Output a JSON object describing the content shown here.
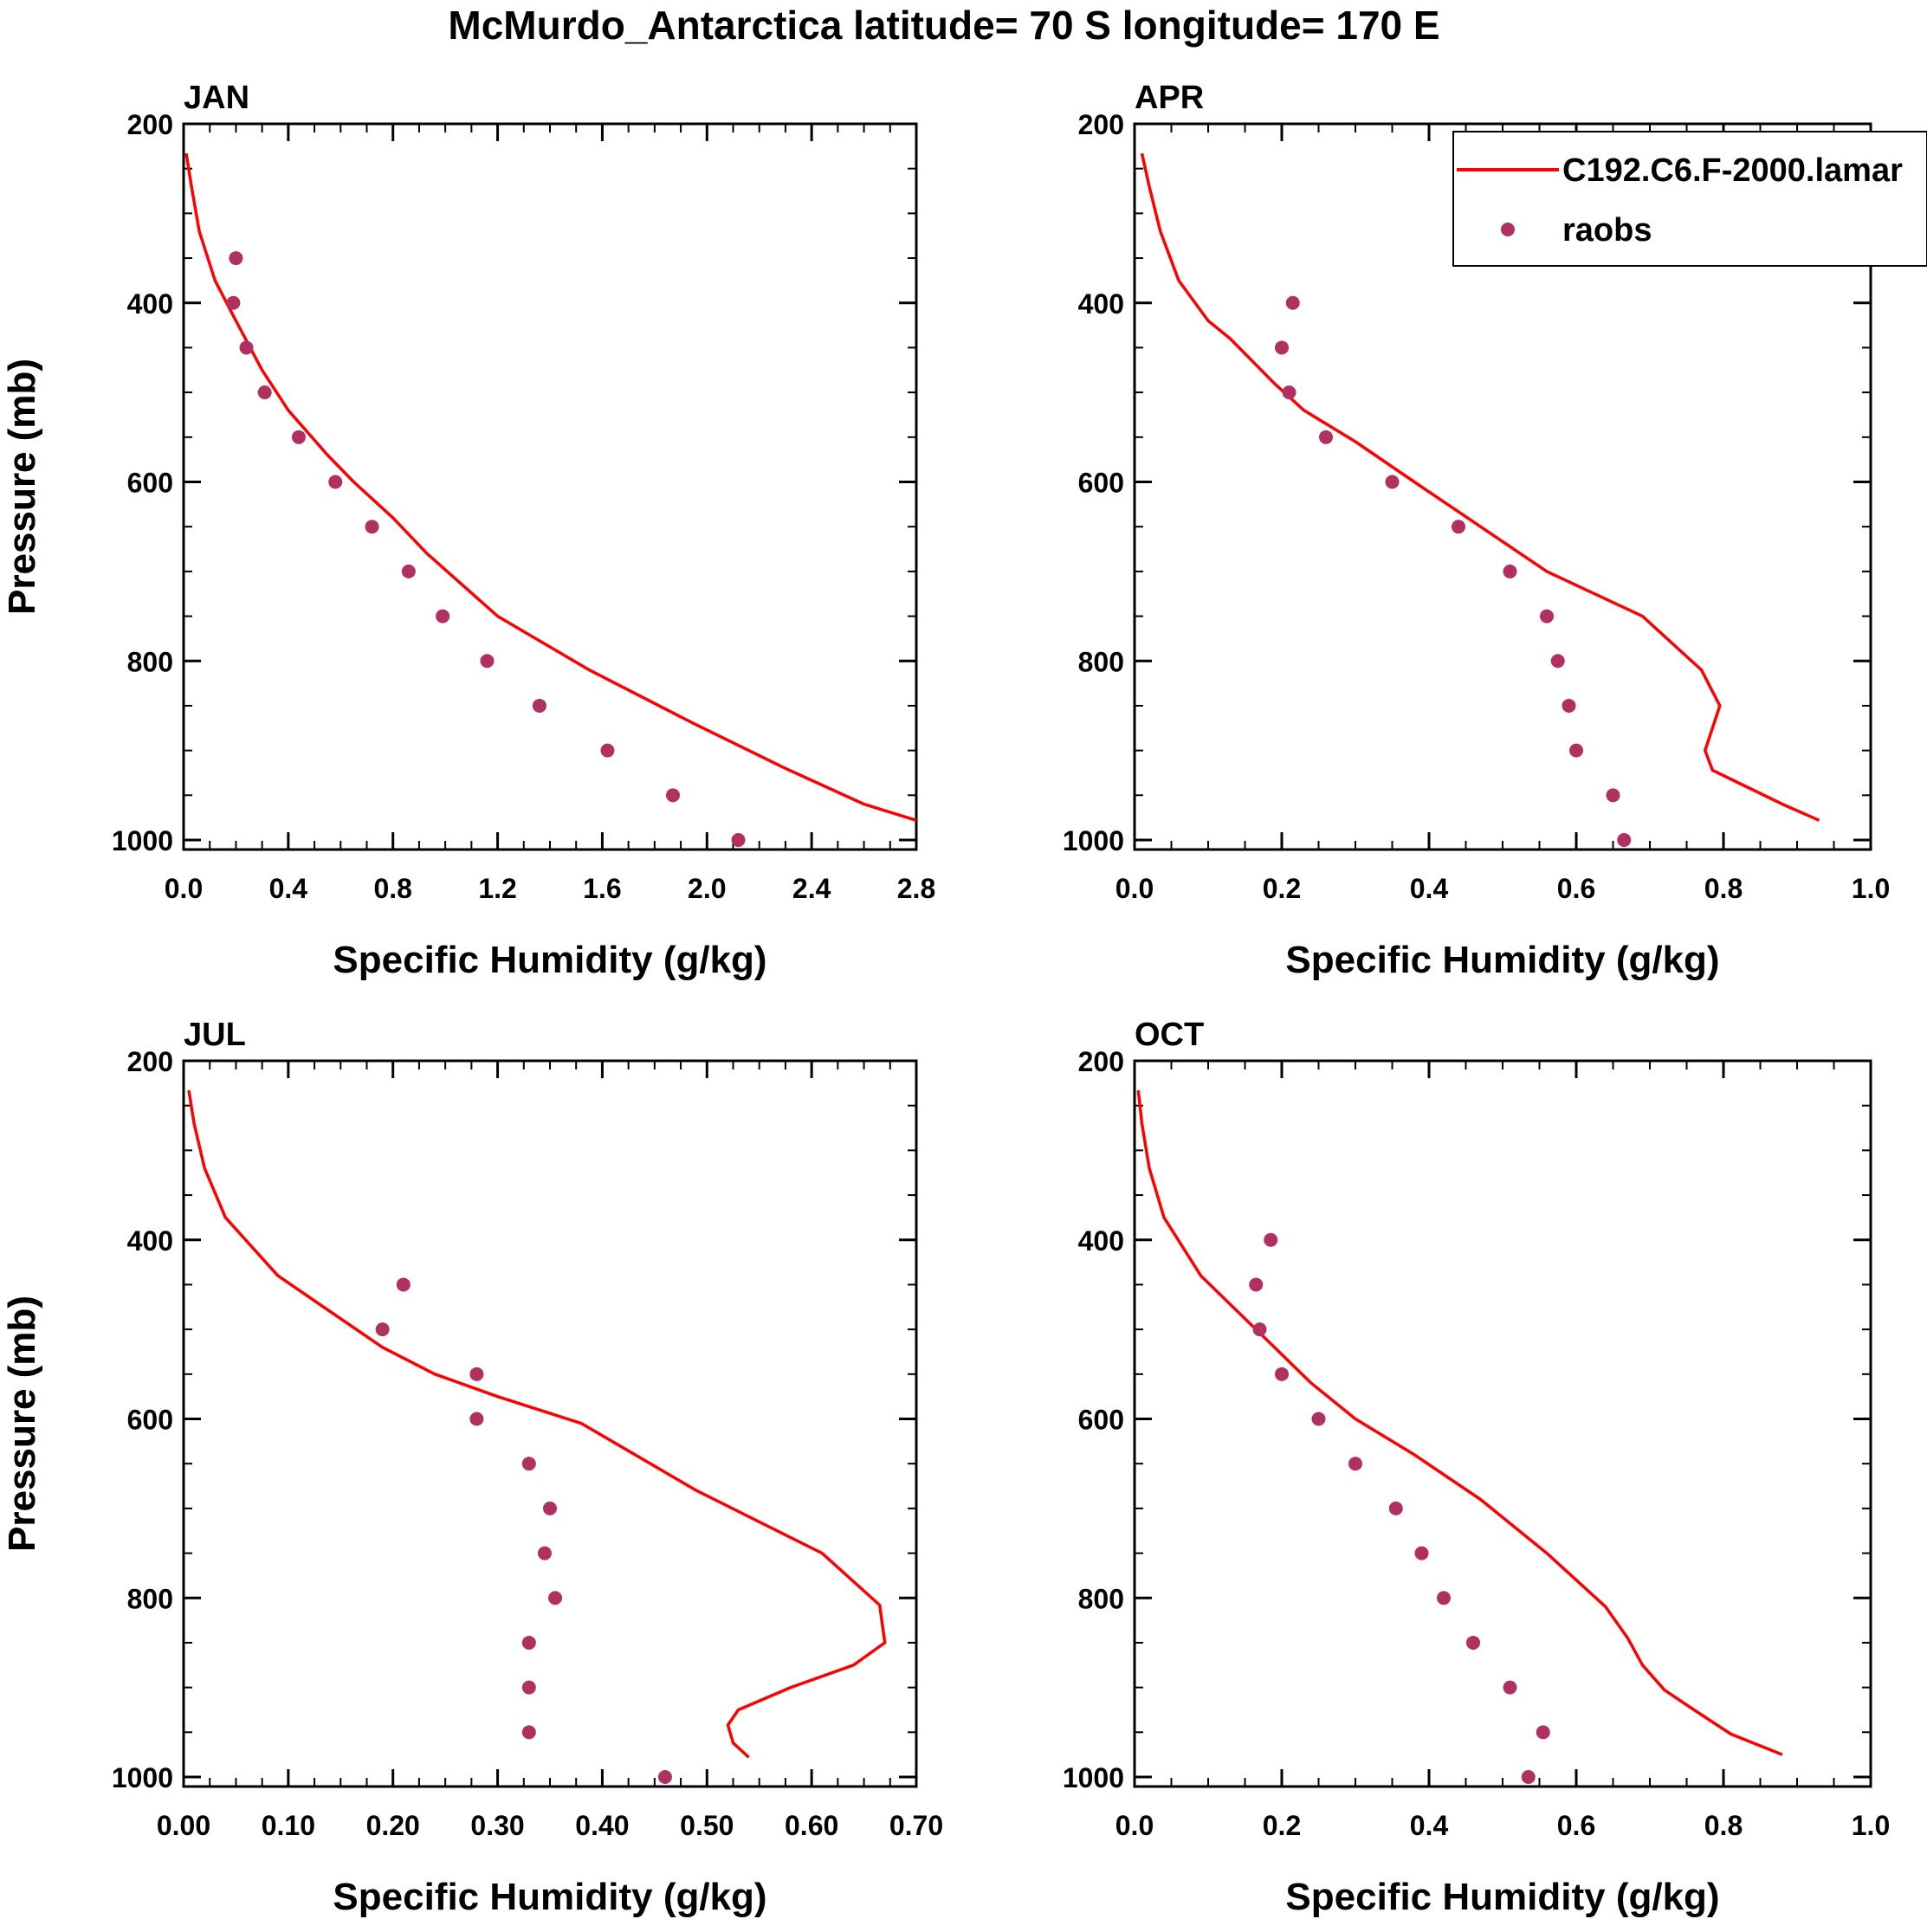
{
  "figure": {
    "title": "McMurdo_Antarctica  latitude= 70 S longitude= 170 E"
  },
  "legend": {
    "model_label": "C192.C6.F-2000.lamar",
    "obs_label": "raobs",
    "model_color": "#ff0000",
    "obs_color": "#b03060"
  },
  "chart_data": [
    {
      "type": "line",
      "label": "JAN",
      "xlabel": "Specific Humidity (g/kg)",
      "ylabel": "Pressure (mb)",
      "xlim": [
        0,
        2.8
      ],
      "ylim": [
        200,
        1000
      ],
      "y_inverted": true,
      "xticks": [
        0,
        0.4,
        0.8,
        1.2,
        1.6,
        2.0,
        2.4,
        2.8
      ],
      "xtick_labels": [
        "0.0",
        "0.4",
        "0.8",
        "1.2",
        "1.6",
        "2.0",
        "2.4",
        "2.8"
      ],
      "yticks": [
        200,
        400,
        600,
        800,
        1000
      ],
      "ytick_labels": [
        "200",
        "400",
        "600",
        "800",
        "1000"
      ],
      "series": [
        {
          "name": "C192.C6.F-2000.lamar",
          "kind": "line",
          "x": [
            0.01,
            0.03,
            0.06,
            0.12,
            0.2,
            0.3,
            0.4,
            0.55,
            0.65,
            0.8,
            0.93,
            1.2,
            1.55,
            1.95,
            2.3,
            2.6,
            2.8
          ],
          "y": [
            233,
            270,
            320,
            375,
            420,
            475,
            520,
            570,
            600,
            640,
            680,
            750,
            810,
            870,
            920,
            960,
            978
          ]
        },
        {
          "name": "raobs",
          "kind": "scatter",
          "x": [
            0.2,
            0.19,
            0.24,
            0.31,
            0.44,
            0.58,
            0.72,
            0.86,
            0.99,
            1.16,
            1.36,
            1.62,
            1.87,
            2.12
          ],
          "y": [
            350,
            400,
            450,
            500,
            550,
            600,
            650,
            700,
            750,
            800,
            850,
            900,
            950,
            1000
          ]
        }
      ]
    },
    {
      "type": "line",
      "label": "APR",
      "xlabel": "Specific Humidity (g/kg)",
      "ylabel": "Pressure (mb)",
      "xlim": [
        0,
        1.0
      ],
      "ylim": [
        200,
        1000
      ],
      "y_inverted": true,
      "xticks": [
        0,
        0.2,
        0.4,
        0.6,
        0.8,
        1.0
      ],
      "xtick_labels": [
        "0.0",
        "0.2",
        "0.4",
        "0.6",
        "0.8",
        "1.0"
      ],
      "yticks": [
        200,
        400,
        600,
        800,
        1000
      ],
      "ytick_labels": [
        "200",
        "400",
        "600",
        "800",
        "1000"
      ],
      "series": [
        {
          "name": "C192.C6.F-2000.lamar",
          "kind": "line",
          "x": [
            0.01,
            0.02,
            0.035,
            0.06,
            0.1,
            0.13,
            0.19,
            0.23,
            0.3,
            0.38,
            0.47,
            0.56,
            0.69,
            0.77,
            0.795,
            0.785,
            0.775,
            0.785,
            0.83,
            0.88,
            0.93
          ],
          "y": [
            233,
            270,
            320,
            375,
            420,
            440,
            490,
            520,
            555,
            600,
            650,
            700,
            750,
            810,
            850,
            875,
            900,
            922,
            940,
            960,
            978
          ]
        },
        {
          "name": "raobs",
          "kind": "scatter",
          "x": [
            0.215,
            0.2,
            0.21,
            0.26,
            0.35,
            0.44,
            0.51,
            0.56,
            0.575,
            0.59,
            0.6,
            0.65,
            0.665
          ],
          "y": [
            400,
            450,
            500,
            550,
            600,
            650,
            700,
            750,
            800,
            850,
            900,
            950,
            1000
          ]
        }
      ]
    },
    {
      "type": "line",
      "label": "JUL",
      "xlabel": "Specific Humidity (g/kg)",
      "ylabel": "Pressure (mb)",
      "xlim": [
        0,
        0.7
      ],
      "ylim": [
        200,
        1000
      ],
      "y_inverted": true,
      "xticks": [
        0,
        0.1,
        0.2,
        0.3,
        0.4,
        0.5,
        0.6,
        0.7
      ],
      "xtick_labels": [
        "0.00",
        "0.10",
        "0.20",
        "0.30",
        "0.40",
        "0.50",
        "0.60",
        "0.70"
      ],
      "yticks": [
        200,
        400,
        600,
        800,
        1000
      ],
      "ytick_labels": [
        "200",
        "400",
        "600",
        "800",
        "1000"
      ],
      "series": [
        {
          "name": "C192.C6.F-2000.lamar",
          "kind": "line",
          "x": [
            0.005,
            0.01,
            0.02,
            0.04,
            0.09,
            0.14,
            0.19,
            0.24,
            0.3,
            0.38,
            0.49,
            0.61,
            0.665,
            0.67,
            0.64,
            0.58,
            0.53,
            0.52,
            0.525,
            0.54
          ],
          "y": [
            233,
            270,
            320,
            375,
            440,
            480,
            520,
            550,
            575,
            605,
            680,
            750,
            808,
            850,
            875,
            900,
            925,
            942,
            962,
            978
          ]
        },
        {
          "name": "raobs",
          "kind": "scatter",
          "x": [
            0.21,
            0.19,
            0.28,
            0.28,
            0.33,
            0.35,
            0.345,
            0.355,
            0.33,
            0.33,
            0.33,
            0.46
          ],
          "y": [
            450,
            500,
            550,
            600,
            650,
            700,
            750,
            800,
            850,
            900,
            950,
            1000
          ]
        }
      ]
    },
    {
      "type": "line",
      "label": "OCT",
      "xlabel": "Specific Humidity (g/kg)",
      "ylabel": "Pressure (mb)",
      "xlim": [
        0,
        1.0
      ],
      "ylim": [
        200,
        1000
      ],
      "y_inverted": true,
      "xticks": [
        0,
        0.2,
        0.4,
        0.6,
        0.8,
        1.0
      ],
      "xtick_labels": [
        "0.0",
        "0.2",
        "0.4",
        "0.6",
        "0.8",
        "1.0"
      ],
      "yticks": [
        200,
        400,
        600,
        800,
        1000
      ],
      "ytick_labels": [
        "200",
        "400",
        "600",
        "800",
        "1000"
      ],
      "series": [
        {
          "name": "C192.C6.F-2000.lamar",
          "kind": "line",
          "x": [
            0.005,
            0.01,
            0.02,
            0.04,
            0.09,
            0.14,
            0.19,
            0.24,
            0.3,
            0.38,
            0.47,
            0.56,
            0.64,
            0.67,
            0.69,
            0.72,
            0.76,
            0.81,
            0.88
          ],
          "y": [
            233,
            270,
            320,
            375,
            440,
            480,
            520,
            560,
            600,
            640,
            690,
            750,
            810,
            845,
            875,
            903,
            925,
            952,
            975
          ]
        },
        {
          "name": "raobs",
          "kind": "scatter",
          "x": [
            0.185,
            0.165,
            0.17,
            0.2,
            0.25,
            0.3,
            0.355,
            0.39,
            0.42,
            0.46,
            0.51,
            0.555,
            0.535
          ],
          "y": [
            400,
            450,
            500,
            550,
            600,
            650,
            700,
            750,
            800,
            850,
            900,
            950,
            1000
          ]
        }
      ]
    }
  ]
}
